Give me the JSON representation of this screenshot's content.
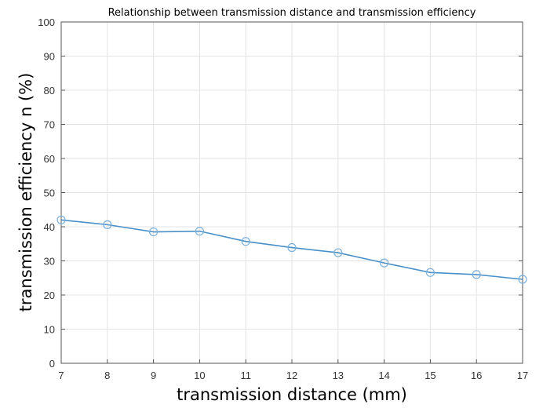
{
  "chart_data": {
    "type": "line",
    "title": "Relationship between transmission distance and transmission efficiency",
    "xlabel": "transmission distance (mm)",
    "ylabel": "transmission efficiency n (%)",
    "xlim": [
      7,
      17
    ],
    "ylim": [
      0,
      100
    ],
    "xticks": [
      7,
      8,
      9,
      10,
      11,
      12,
      13,
      14,
      15,
      16,
      17
    ],
    "yticks": [
      0,
      10,
      20,
      30,
      40,
      50,
      60,
      70,
      80,
      90,
      100
    ],
    "grid": true,
    "series": [
      {
        "name": "efficiency",
        "color": "#4a90c8",
        "marker": "circle",
        "x": [
          7,
          8,
          9,
          10,
          11,
          12,
          13,
          14,
          15,
          16,
          17
        ],
        "y": [
          42.0,
          40.6,
          38.5,
          38.7,
          35.7,
          33.9,
          32.4,
          29.4,
          26.6,
          26.0,
          24.6
        ]
      }
    ]
  }
}
